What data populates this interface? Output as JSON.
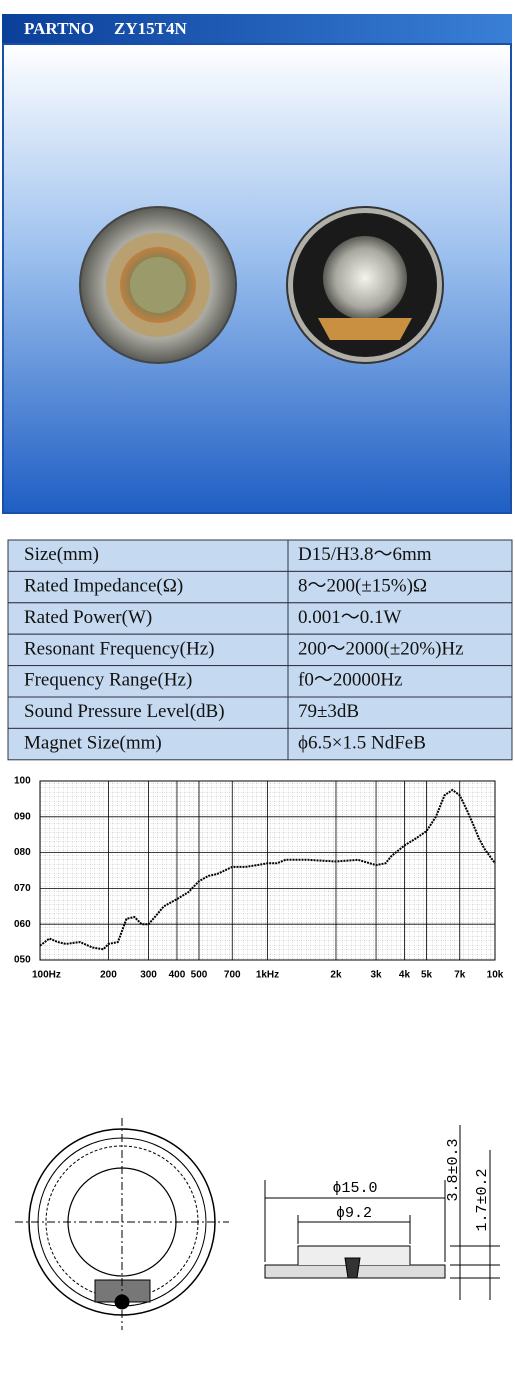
{
  "header": {
    "label": "PARTNO",
    "part_number": "ZY15T4N"
  },
  "specs": {
    "rows": [
      [
        "Size(mm)",
        "D15/H3.8～6mm"
      ],
      [
        "Rated Impedance(Ω)",
        "8～200(±15%)Ω"
      ],
      [
        "Rated Power(W)",
        "0.001～0.1W"
      ],
      [
        "Resonant Frequency(Hz)",
        "200～2000(±20%)Hz"
      ],
      [
        "Frequency Range(Hz)",
        "f0～20000Hz"
      ],
      [
        "Sound Pressure Level(dB)",
        "79±3dB"
      ],
      [
        "Magnet Size(mm)",
        "ϕ6.5×1.5 NdFeB"
      ]
    ]
  },
  "chart_data": {
    "type": "line",
    "log_x": true,
    "grid": true,
    "color": "#000000",
    "x": [
      100,
      110,
      120,
      130,
      150,
      170,
      190,
      200,
      220,
      240,
      260,
      280,
      300,
      320,
      350,
      400,
      450,
      500,
      550,
      600,
      700,
      800,
      900,
      1000,
      1100,
      1200,
      1500,
      2000,
      2500,
      3000,
      3300,
      3500,
      4000,
      4500,
      5000,
      5500,
      6000,
      6500,
      7000,
      7500,
      8000,
      8500,
      9000,
      10000
    ],
    "values": [
      54,
      56,
      55,
      54.5,
      55,
      53.5,
      53,
      54.5,
      55,
      61.5,
      62,
      60,
      60,
      62,
      65,
      67,
      69,
      72,
      73.5,
      74,
      76,
      76,
      76.5,
      77,
      77,
      78,
      78,
      77.5,
      78,
      76.5,
      77,
      79,
      82,
      84,
      86,
      90,
      96,
      97.5,
      96,
      92,
      88,
      84,
      81,
      77
    ],
    "xlim": [
      100,
      10000
    ],
    "ylim": [
      50,
      100
    ],
    "xticks": [
      {
        "value": 100,
        "label": "100Hz"
      },
      200,
      300,
      400,
      500,
      700,
      {
        "value": 1000,
        "label": "1kHz"
      },
      {
        "value": 2000,
        "label": "2k"
      },
      {
        "value": 3000,
        "label": "3k"
      },
      {
        "value": 4000,
        "label": "4k"
      },
      {
        "value": 5000,
        "label": "5k"
      },
      {
        "value": 7000,
        "label": "7k"
      },
      {
        "value": 10000,
        "label": "10k"
      }
    ],
    "yticks": [
      100,
      {
        "value": 90,
        "label": "090"
      },
      {
        "value": 80,
        "label": "080"
      },
      {
        "value": 70,
        "label": "070"
      },
      {
        "value": 60,
        "label": "060"
      },
      {
        "value": 50,
        "label": "050"
      }
    ]
  },
  "drawing": {
    "outer_diameter": "ϕ15.0",
    "inner_diameter": "ϕ9.2",
    "height": "3.8±0.3",
    "depth": "1.7±0.2"
  }
}
